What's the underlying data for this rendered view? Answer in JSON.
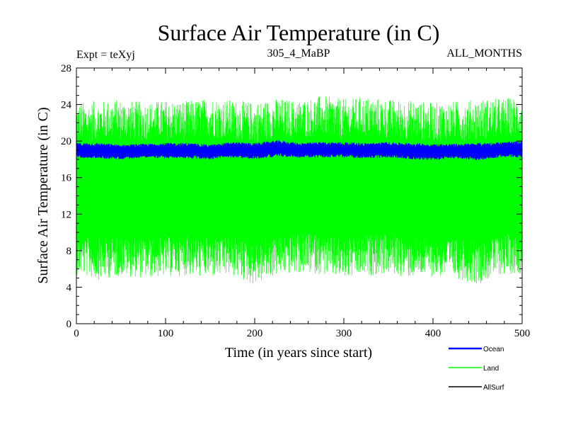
{
  "chart_data": {
    "type": "line",
    "title": "Surface Air Temperature (in C)",
    "subtitle_left": "Expt = teXyj",
    "subtitle_center": "305_4_MaBP",
    "subtitle_right": "ALL_MONTHS",
    "xlabel": "Time (in years since start)",
    "ylabel": "Surface Air Temperature (in C)",
    "xlim": [
      0,
      500
    ],
    "ylim": [
      0,
      28
    ],
    "xticks": [
      "0",
      "100",
      "200",
      "300",
      "400",
      "500"
    ],
    "yticks": [
      "0",
      "4",
      "8",
      "12",
      "16",
      "20",
      "24",
      "28"
    ],
    "grid": false,
    "legend_position": "bottom-right",
    "series": [
      {
        "name": "Ocean",
        "color": "#0000ff",
        "x": [
          0,
          25,
          50,
          75,
          100,
          125,
          150,
          175,
          200,
          225,
          250,
          275,
          300,
          325,
          350,
          375,
          400,
          425,
          450,
          475,
          500
        ],
        "min": [
          18.2,
          18.1,
          18.0,
          18.2,
          18.1,
          18.1,
          18.0,
          18.2,
          18.0,
          18.3,
          18.2,
          18.2,
          18.2,
          18.1,
          18.2,
          18.0,
          17.9,
          18.1,
          17.9,
          18.2,
          18.2
        ],
        "max": [
          19.8,
          19.8,
          19.6,
          19.7,
          19.8,
          19.8,
          19.6,
          19.9,
          19.8,
          20.1,
          19.8,
          19.9,
          19.9,
          19.8,
          19.9,
          19.8,
          19.7,
          19.7,
          19.8,
          19.9,
          20.0
        ]
      },
      {
        "name": "Land",
        "color": "#00ff00",
        "x": [
          0,
          25,
          50,
          75,
          100,
          125,
          150,
          175,
          200,
          225,
          250,
          275,
          300,
          325,
          350,
          375,
          400,
          425,
          450,
          475,
          500
        ],
        "min": [
          5.4,
          4.8,
          5.2,
          5.0,
          5.1,
          5.3,
          5.0,
          5.2,
          4.2,
          5.3,
          5.5,
          5.4,
          4.8,
          5.2,
          5.4,
          5.0,
          5.2,
          5.0,
          4.3,
          5.3,
          5.5
        ],
        "max": [
          24.2,
          24.4,
          24.6,
          24.3,
          24.5,
          24.4,
          24.8,
          24.5,
          24.3,
          24.7,
          24.5,
          25.0,
          24.6,
          24.9,
          24.6,
          24.5,
          24.2,
          24.4,
          24.6,
          24.7,
          24.9
        ]
      },
      {
        "name": "AllSurf",
        "color": "#000000",
        "x": [],
        "min": [],
        "max": []
      }
    ]
  }
}
